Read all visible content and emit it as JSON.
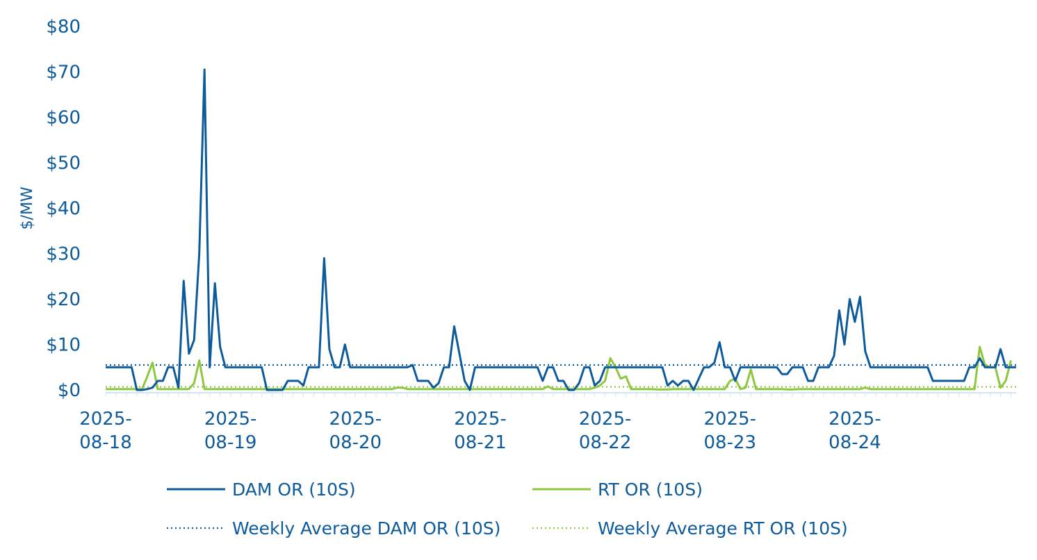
{
  "chart_data": {
    "type": "line",
    "title": "",
    "xlabel": "",
    "ylabel": "$/MW",
    "ylim": [
      0,
      80
    ],
    "y_ticks": [
      "$0",
      "$10",
      "$20",
      "$30",
      "$40",
      "$50",
      "$60",
      "$70",
      "$80"
    ],
    "x_ticks": [
      "2025-08-18",
      "2025-08-19",
      "2025-08-20",
      "2025-08-21",
      "2025-08-22",
      "2025-08-23",
      "2025-08-24"
    ],
    "x_tick_labels": [
      [
        "2025-",
        "08-18"
      ],
      [
        "2025-",
        "08-19"
      ],
      [
        "2025-",
        "08-20"
      ],
      [
        "2025-",
        "08-21"
      ],
      [
        "2025-",
        "08-22"
      ],
      [
        "2025-",
        "08-23"
      ],
      [
        "2025-",
        "08-24"
      ]
    ],
    "x_start": "2025-08-18 00:00",
    "x_step": "1 hour",
    "grid": false,
    "legend_position": "bottom",
    "series": [
      {
        "name": "DAM OR (10S)",
        "style": "solid",
        "color": "#0d5a9a",
        "values": [
          5,
          5,
          5,
          5,
          5,
          5,
          0,
          0,
          0.2,
          0.5,
          2,
          2,
          5,
          5,
          0.5,
          24,
          8,
          11,
          30,
          70.5,
          5,
          23.5,
          9.5,
          5,
          5,
          5,
          5,
          5,
          5,
          5,
          5,
          0,
          0,
          0,
          0,
          2,
          2,
          2,
          1,
          5,
          5,
          5,
          29,
          9,
          5,
          5,
          10,
          5,
          5,
          5,
          5,
          5,
          5,
          5,
          5,
          5,
          5,
          5,
          5,
          5.5,
          2,
          2,
          2,
          0.5,
          1.5,
          5,
          5,
          14,
          8,
          2,
          0,
          5,
          5,
          5,
          5,
          5,
          5,
          5,
          5,
          5,
          5,
          5,
          5,
          5,
          2,
          5,
          5,
          2,
          2,
          0,
          0,
          1.5,
          5,
          5,
          1,
          2,
          5,
          5,
          5,
          5,
          5,
          5,
          5,
          5,
          5,
          5,
          5,
          5,
          1,
          2,
          1,
          2,
          2,
          0,
          2.5,
          5,
          5,
          6,
          10.5,
          5,
          5,
          2,
          5,
          5,
          5,
          5,
          5,
          5,
          5,
          5,
          3.5,
          3.5,
          5,
          5,
          5,
          2,
          2,
          5,
          5,
          5,
          7.5,
          17.5,
          10,
          20,
          15,
          20.5,
          8.5,
          5,
          5,
          5,
          5,
          5,
          5,
          5,
          5,
          5,
          5,
          5,
          5,
          2,
          2,
          2,
          2,
          2,
          2,
          2,
          5,
          5,
          7,
          5,
          5,
          5,
          9,
          5,
          5,
          5
        ],
        "weekly_average": 5.5
      },
      {
        "name": "RT OR (10S)",
        "style": "solid",
        "color": "#8dc63f",
        "values": [
          0.2,
          0.2,
          0.2,
          0.2,
          0.2,
          0.2,
          0.2,
          0.2,
          3,
          6,
          0.2,
          0.2,
          0.2,
          0.2,
          0.2,
          0.2,
          0.2,
          1.5,
          6.5,
          0.2,
          0.2,
          0.2,
          0.2,
          0.2,
          0.2,
          0.2,
          0.2,
          0.2,
          0.2,
          0.2,
          0.2,
          0.2,
          0.2,
          0.2,
          0.2,
          0.2,
          0.2,
          0.2,
          0.2,
          0.2,
          0.2,
          0.2,
          0.2,
          0.2,
          0.2,
          0.2,
          0.2,
          0.2,
          0.2,
          0.2,
          0.2,
          0.2,
          0.2,
          0.2,
          0.2,
          0.2,
          0.5,
          0.5,
          0.2,
          0.2,
          0.2,
          0.2,
          0.2,
          0.2,
          0.2,
          0.2,
          0.2,
          0.2,
          0.2,
          0.2,
          0.2,
          0.2,
          0.2,
          0.2,
          0.2,
          0.2,
          0.2,
          0.2,
          0.2,
          0.2,
          0.2,
          0.2,
          0.2,
          0.2,
          0.2,
          0.8,
          0.2,
          0.2,
          0.2,
          0.2,
          0.2,
          0.2,
          0.2,
          0.2,
          0.5,
          1,
          2,
          7,
          5,
          2.5,
          3,
          0.2,
          0.2,
          0.2,
          0.2,
          0.2,
          0.1,
          0.1,
          0.1,
          0.2,
          0.2,
          0.2,
          0.2,
          0.2,
          0.2,
          0.2,
          0.2,
          0.2,
          0.2,
          0.2,
          2,
          2.5,
          0.2,
          0.5,
          4.5,
          0.2,
          0.2,
          0.2,
          0.2,
          0.2,
          0.2,
          0.1,
          0.1,
          0.2,
          0.2,
          0.2,
          0.2,
          0.2,
          0.2,
          0.2,
          0.2,
          0.2,
          0.2,
          0.2,
          0.2,
          0.2,
          0.5,
          0.2,
          0.2,
          0.2,
          0.2,
          0.2,
          0.2,
          0.2,
          0.2,
          0.2,
          0.2,
          0.2,
          0.2,
          0.2,
          0.2,
          0.2,
          0.2,
          0.2,
          0.2,
          0.2,
          0.2,
          0.2,
          9.5,
          5.5,
          5,
          5,
          0.5,
          2,
          6.5
        ],
        "weekly_average": 0.7
      },
      {
        "name": "Weekly Average DAM OR (10S)",
        "style": "dotted",
        "color": "#0d5a9a",
        "value": 5.5
      },
      {
        "name": "Weekly Average RT OR (10S)",
        "style": "dotted",
        "color": "#8dc63f",
        "value": 0.7
      }
    ]
  }
}
